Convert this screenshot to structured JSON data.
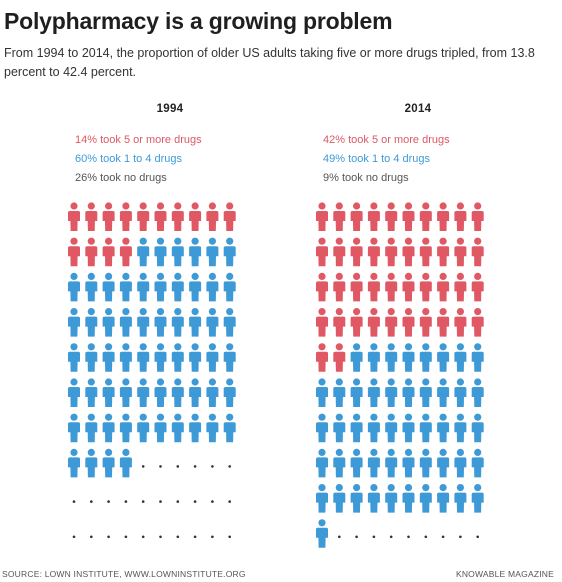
{
  "title": "Polypharmacy is a growing problem",
  "subtitle": "From 1994 to 2014, the proportion of older US adults taking five or more drugs tripled, from 13.8 percent to 42.4 percent.",
  "colors": {
    "five_or_more": "#e05863",
    "one_to_four": "#3e9ad6",
    "no_drugs": "#9a9a9a"
  },
  "source": "SOURCE: LOWN INSTITUTE, WWW.LOWNINSTITUTE.ORG",
  "credit": "KNOWABLE MAGAZINE",
  "chart_data": [
    {
      "type": "pictogram",
      "year": "1994",
      "legend": [
        {
          "pct": "14%",
          "text": "took 5 or more drugs"
        },
        {
          "pct": "60%",
          "text": "took 1 to 4 drugs"
        },
        {
          "pct": "26%",
          "text": "took no drugs"
        }
      ],
      "values": {
        "five_or_more": 14,
        "one_to_four": 60,
        "no_drugs": 26
      }
    },
    {
      "type": "pictogram",
      "year": "2014",
      "legend": [
        {
          "pct": "42%",
          "text": "took 5 or more drugs"
        },
        {
          "pct": "49%",
          "text": "took 1 to 4 drugs"
        },
        {
          "pct": "9%",
          "text": "took no drugs"
        }
      ],
      "values": {
        "five_or_more": 42,
        "one_to_four": 49,
        "no_drugs": 9
      }
    }
  ]
}
